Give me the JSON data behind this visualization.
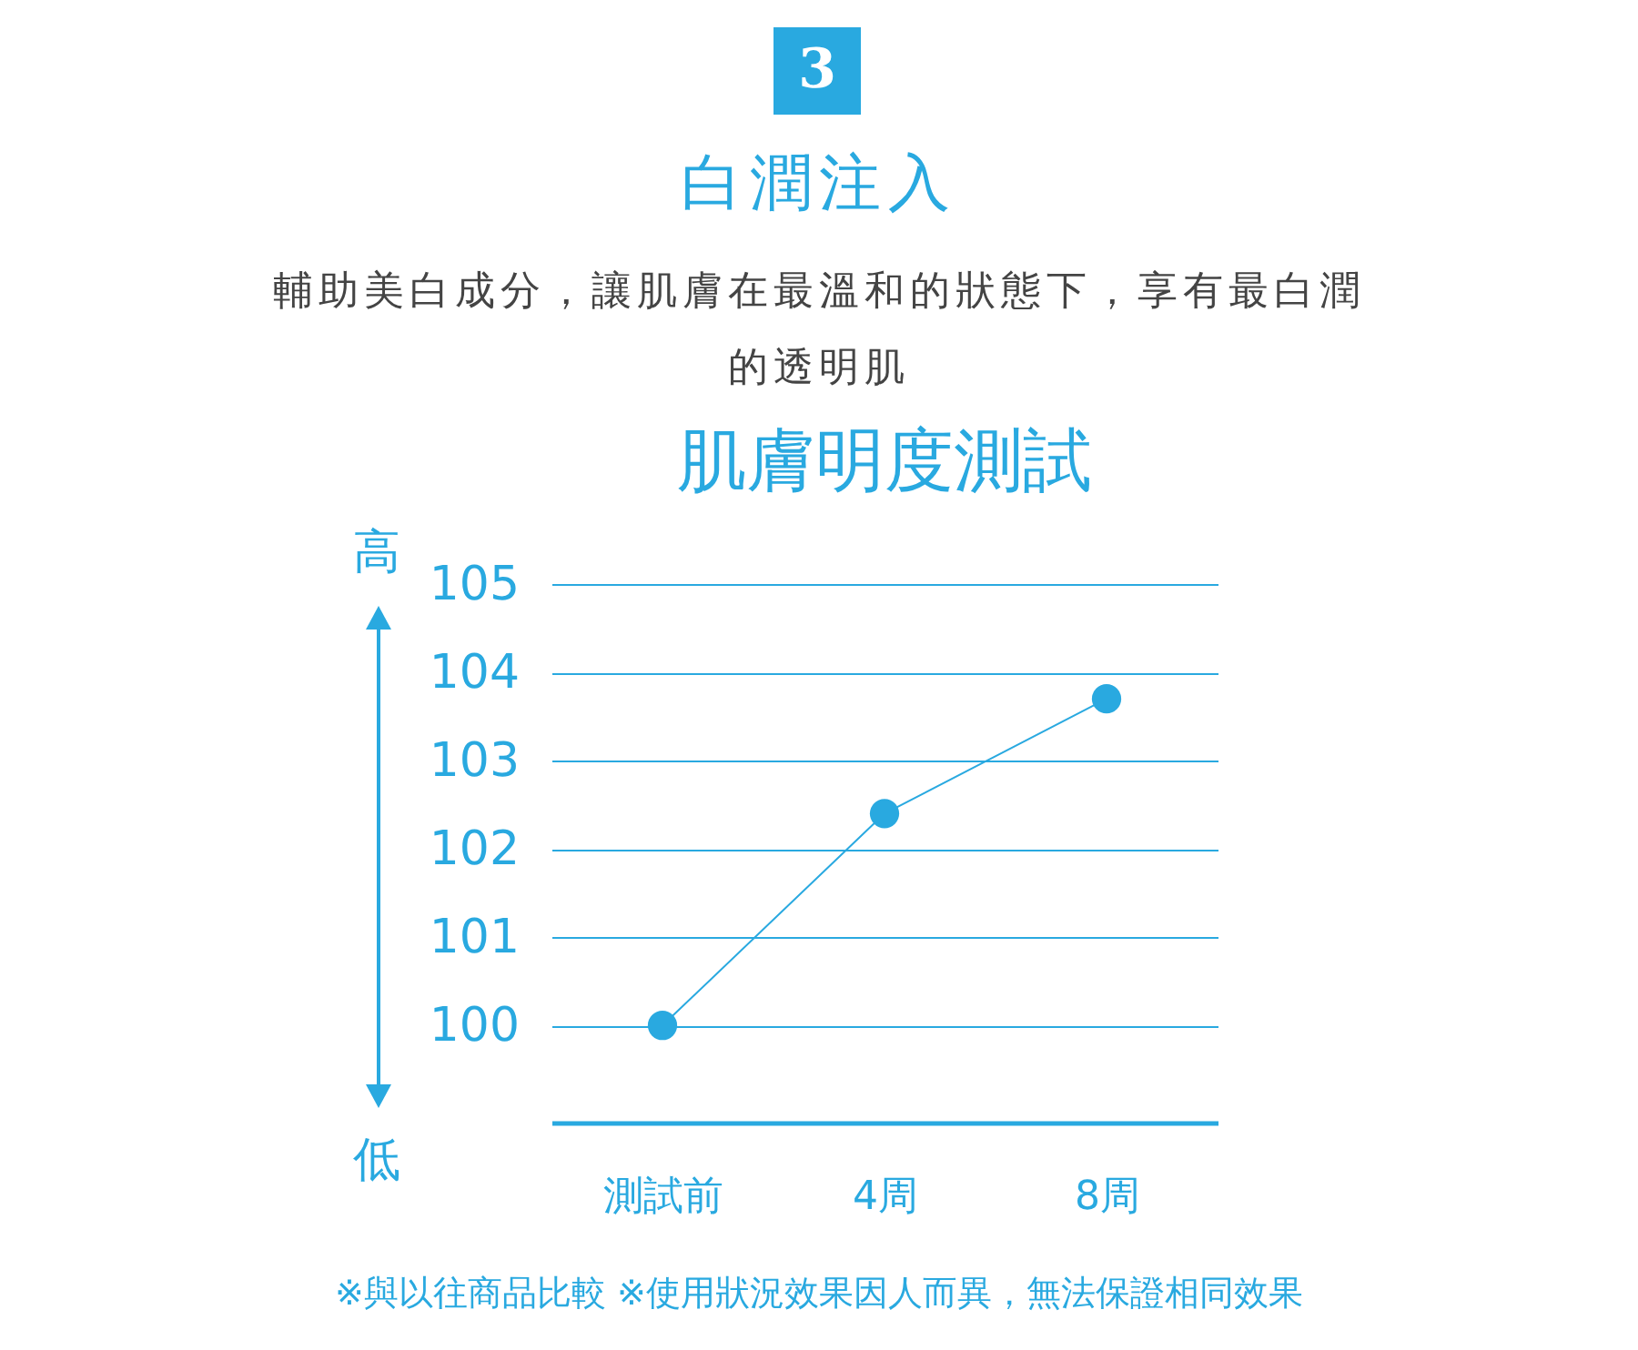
{
  "chart_data": {
    "type": "line",
    "title": "肌膚明度測試",
    "categories": [
      "測試前",
      "4周",
      "8周"
    ],
    "series": [
      {
        "color": "#29a9e0",
        "values": [
          100,
          102.4,
          103.7
        ]
      }
    ],
    "ylim": [
      98.9,
      105
    ],
    "yticks": [
      100,
      101,
      102,
      103,
      104,
      105
    ],
    "grid": "y",
    "marker": "circle",
    "annotations": [
      "3",
      "白潤注入",
      "輔助美白成分，讓肌膚在最溫和的狀態下，享有最白潤的透明肌",
      "高",
      "低",
      "※與以往商品比較 ※使用狀況效果因人而異，無法保證相同效果"
    ]
  }
}
